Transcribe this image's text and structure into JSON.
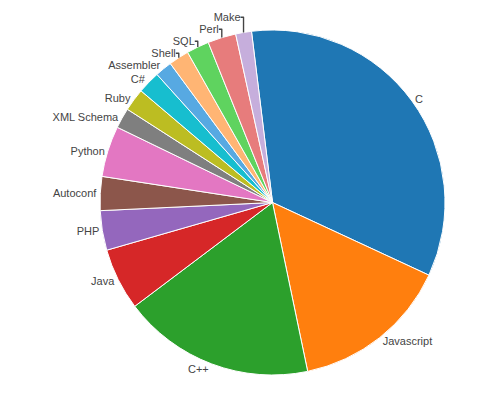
{
  "chart_data": {
    "type": "pie",
    "categories": [
      "C",
      "Javascript",
      "C++",
      "Java",
      "PHP",
      "Autoconf",
      "Python",
      "XML Schema",
      "Ruby",
      "C#",
      "Assembler",
      "Shell",
      "SQL",
      "Perl",
      "Make"
    ],
    "values": [
      32,
      14,
      17,
      5.5,
      3.5,
      3.0,
      4.5,
      1.8,
      2.0,
      2.0,
      1.5,
      1.8,
      2.0,
      2.5,
      1.4
    ]
  }
}
